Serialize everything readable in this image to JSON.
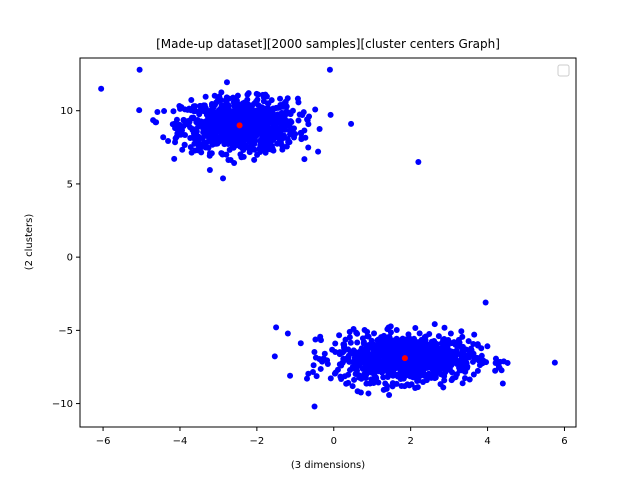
{
  "chart_data": {
    "type": "scatter",
    "title": "[Made-up dataset][2000 samples][cluster centers Graph]",
    "xlabel": "(3 dimensions)",
    "ylabel": "(2 clusters)",
    "xlim": [
      -6.6,
      6.3
    ],
    "ylim": [
      -11.6,
      13.6
    ],
    "xticks": [
      -6,
      -4,
      -2,
      0,
      2,
      4,
      6
    ],
    "yticks": [
      -10,
      -5,
      0,
      5,
      10
    ],
    "grid": false,
    "legend": {
      "position": "top-right",
      "entries": []
    },
    "clusters": [
      {
        "center": [
          -2.45,
          9.0
        ],
        "spread": [
          0.75,
          0.9
        ],
        "count": 1000,
        "color": "#0000ff"
      },
      {
        "center": [
          1.85,
          -6.9
        ],
        "spread": [
          0.9,
          0.8
        ],
        "count": 999,
        "color": "#0000ff"
      }
    ],
    "outliers": [
      {
        "x": 2.2,
        "y": 6.5
      },
      {
        "x": -6.05,
        "y": 11.5
      },
      {
        "x": -5.05,
        "y": 12.8
      },
      {
        "x": -0.1,
        "y": 12.8
      },
      {
        "x": 0.45,
        "y": 9.1
      },
      {
        "x": 3.95,
        "y": -3.1
      },
      {
        "x": 5.75,
        "y": -7.2
      },
      {
        "x": -1.5,
        "y": -4.8
      },
      {
        "x": -0.5,
        "y": -10.2
      }
    ],
    "centers": {
      "color": "#ff0000",
      "points": [
        {
          "x": -2.45,
          "y": 9.0
        },
        {
          "x": 1.85,
          "y": -6.9
        }
      ]
    }
  }
}
